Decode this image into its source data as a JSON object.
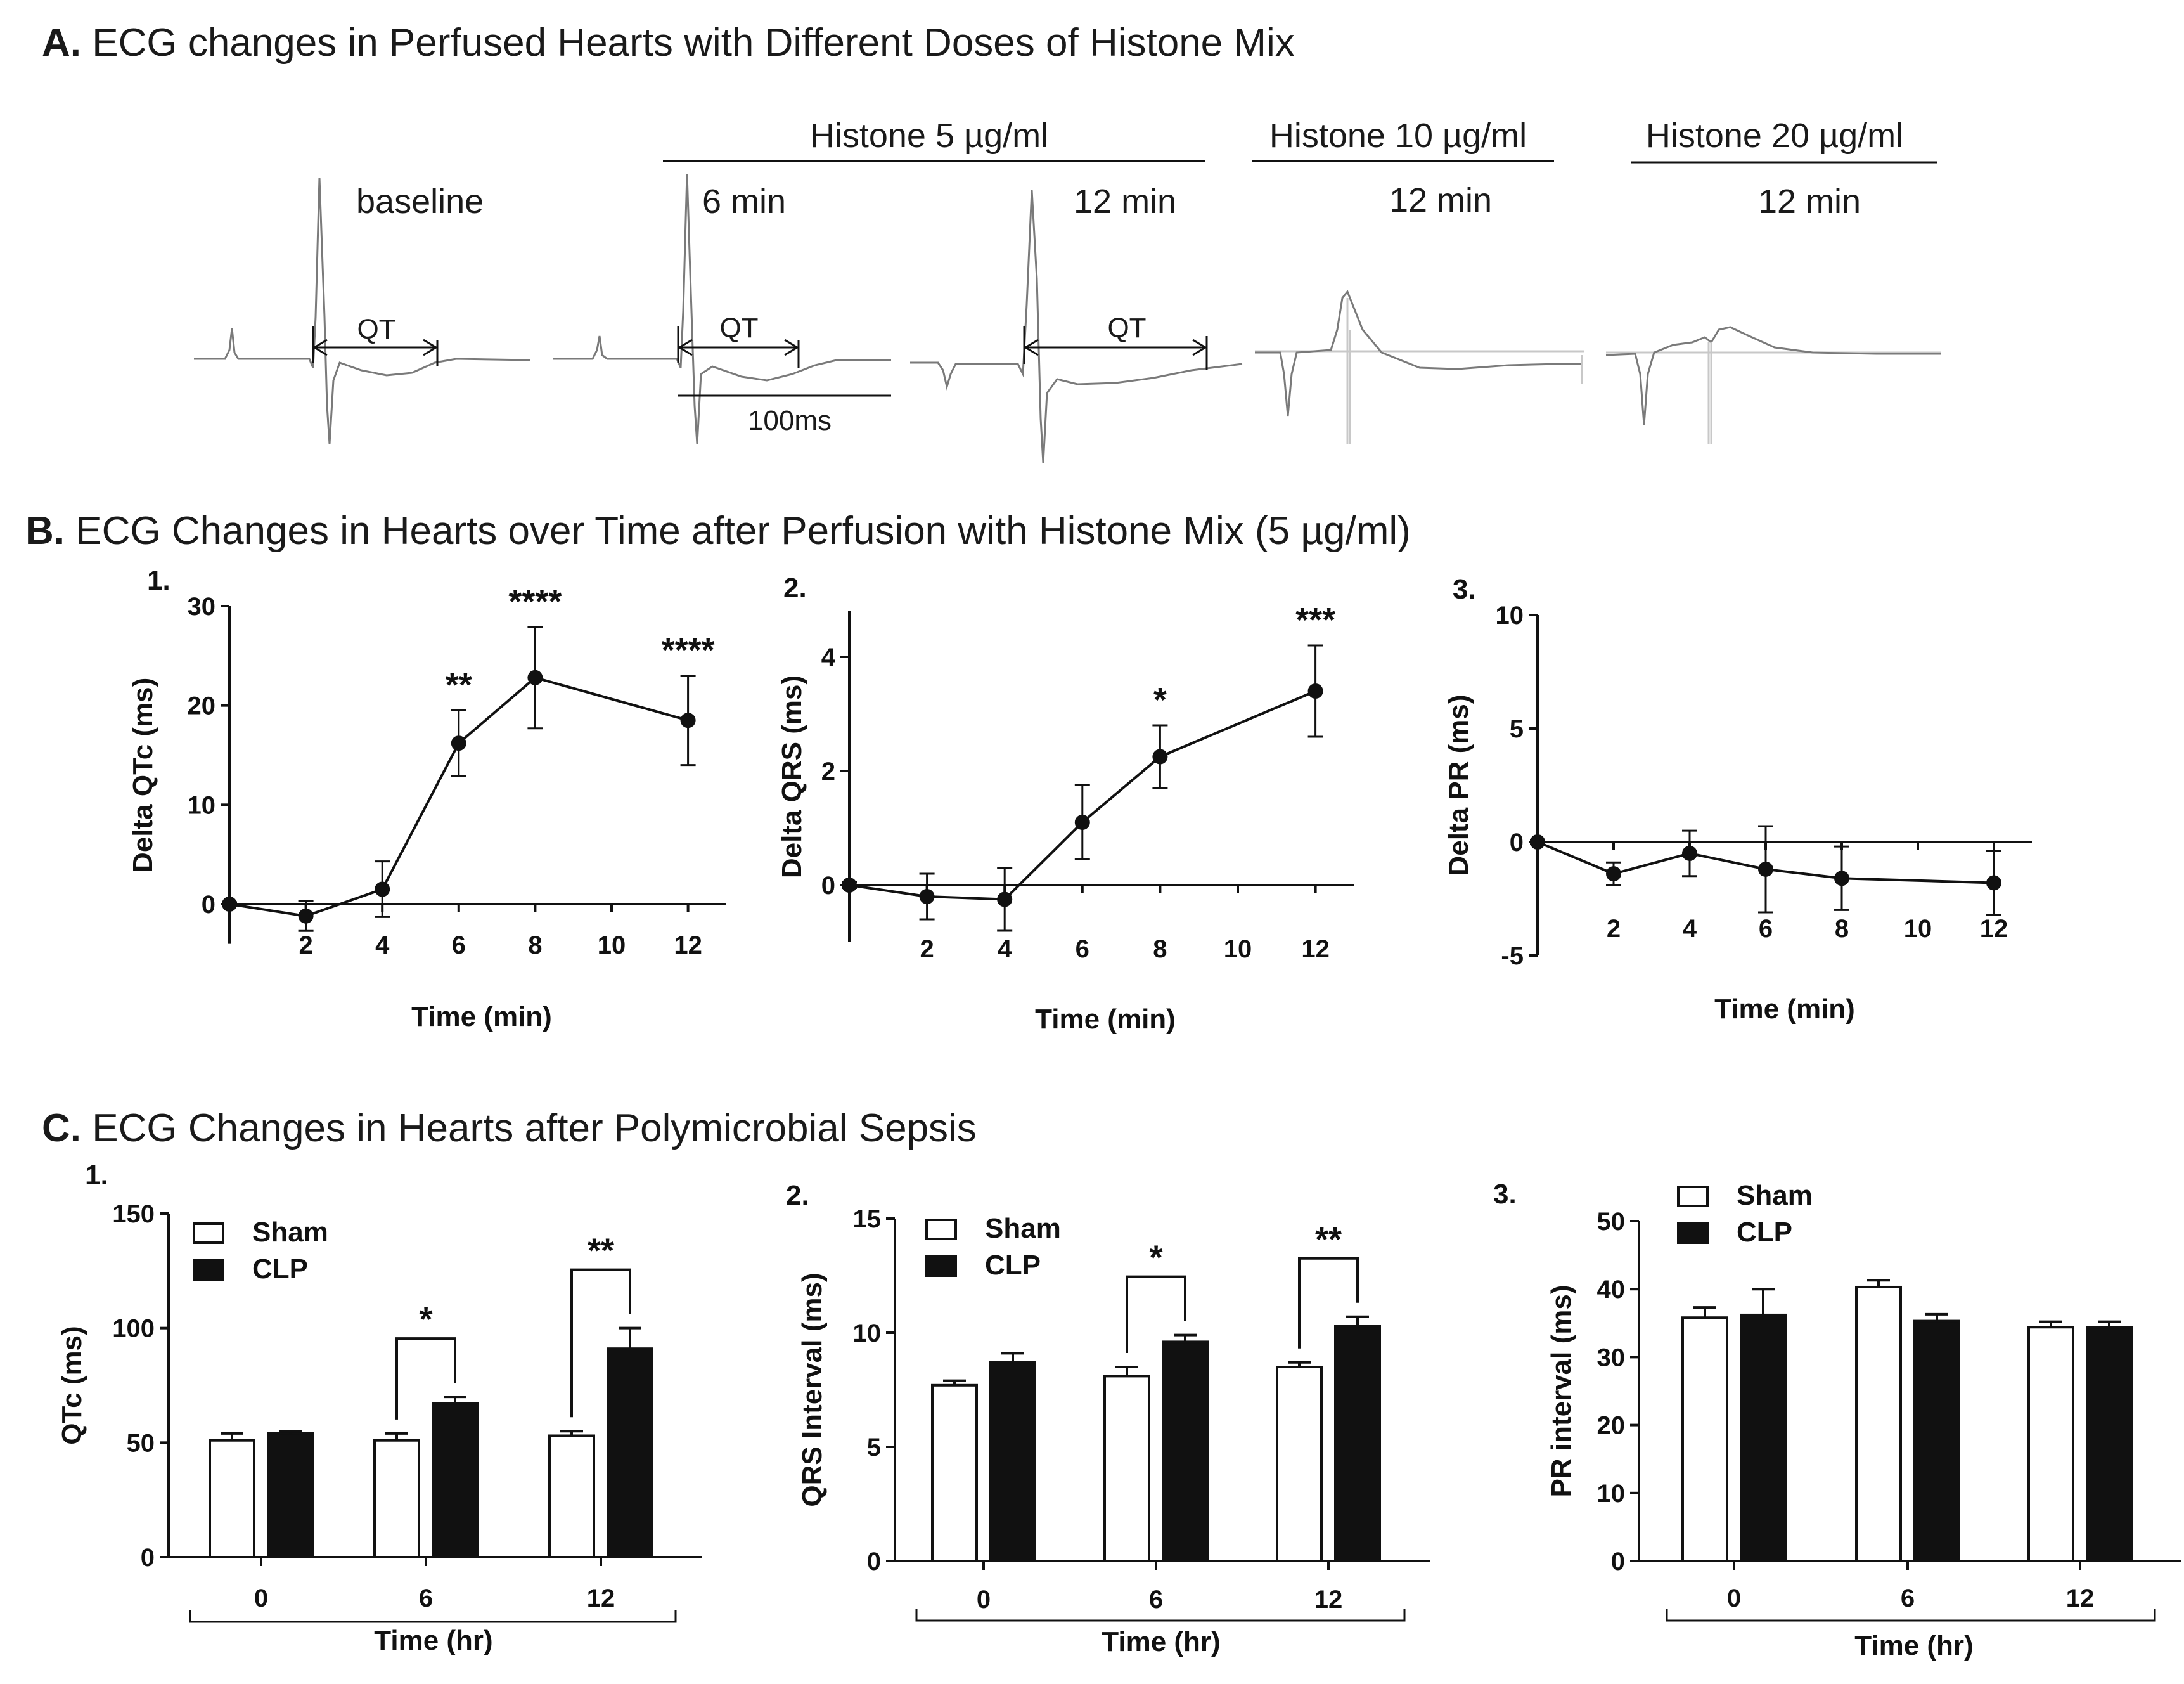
{
  "sections": {
    "A": {
      "letter": "A.",
      "title": "ECG changes in Perfused Hearts with Different Doses of Histone Mix"
    },
    "B": {
      "letter": "B.",
      "title": "ECG Changes in Hearts over Time after Perfusion with Histone Mix (5 µg/ml)"
    },
    "C": {
      "letter": "C.",
      "title": "ECG Changes in Hearts after Polymicrobial Sepsis"
    }
  },
  "ecg": {
    "groups": [
      "Histone 5 µg/ml",
      "Histone 10 µg/ml",
      "Histone 20 µg/ml"
    ],
    "traces": [
      "baseline",
      "6 min",
      "12 min",
      "12 min",
      "12 min"
    ],
    "qt_label": "QT",
    "scale_label": "100ms"
  },
  "colors": {
    "ink": "#111111",
    "trace": "#7a7a7a",
    "baseline_ref": "#c8c8c8"
  },
  "chart_data": [
    {
      "id": "B1",
      "type": "line",
      "panel": "1.",
      "xlabel": "Time (min)",
      "ylabel": "Delta QTc (ms)",
      "xlim": [
        0,
        13
      ],
      "ylim": [
        -4,
        30
      ],
      "xticks": [
        2,
        4,
        6,
        8,
        10,
        12
      ],
      "yticks": [
        0,
        10,
        20,
        30
      ],
      "x": [
        0,
        2,
        4,
        6,
        8,
        12
      ],
      "series": [
        {
          "name": "Delta QTc",
          "values": [
            0,
            -1.2,
            1.5,
            16.2,
            22.8,
            18.5
          ],
          "errors": [
            0.2,
            1.5,
            2.8,
            3.3,
            5.1,
            4.5
          ]
        }
      ],
      "annotations": [
        {
          "x": 6,
          "text": "**"
        },
        {
          "x": 8,
          "text": "****"
        },
        {
          "x": 12,
          "text": "****"
        }
      ]
    },
    {
      "id": "B2",
      "type": "line",
      "panel": "2.",
      "xlabel": "Time (min)",
      "ylabel": "Delta QRS (ms)",
      "xlim": [
        0,
        13
      ],
      "ylim": [
        -1,
        4.8
      ],
      "xticks": [
        2,
        4,
        6,
        8,
        10,
        12
      ],
      "yticks": [
        0,
        2,
        4
      ],
      "x": [
        0,
        2,
        4,
        6,
        8,
        12
      ],
      "series": [
        {
          "name": "Delta QRS",
          "values": [
            0,
            -0.2,
            -0.25,
            1.1,
            2.25,
            3.4
          ],
          "errors": [
            0.05,
            0.4,
            0.55,
            0.65,
            0.55,
            0.8
          ]
        }
      ],
      "annotations": [
        {
          "x": 8,
          "text": "*"
        },
        {
          "x": 12,
          "text": "***"
        }
      ]
    },
    {
      "id": "B3",
      "type": "line",
      "panel": "3.",
      "xlabel": "Time (min)",
      "ylabel": "Delta PR (ms)",
      "xlim": [
        0,
        13
      ],
      "ylim": [
        -5,
        10
      ],
      "xticks": [
        2,
        4,
        6,
        8,
        10,
        12
      ],
      "yticks": [
        -5,
        0,
        5,
        10
      ],
      "x": [
        0,
        2,
        4,
        6,
        8,
        12
      ],
      "series": [
        {
          "name": "Delta PR",
          "values": [
            0,
            -1.4,
            -0.5,
            -1.2,
            -1.6,
            -1.8
          ],
          "errors": [
            0.1,
            0.5,
            1.0,
            1.9,
            1.4,
            1.4
          ]
        }
      ],
      "annotations": []
    },
    {
      "id": "C1",
      "type": "bar",
      "panel": "1.",
      "xlabel": "Time (hr)",
      "ylabel": "QTc (ms)",
      "categories": [
        "0",
        "6",
        "12"
      ],
      "ylim": [
        0,
        150
      ],
      "yticks": [
        0,
        50,
        100,
        150
      ],
      "series": [
        {
          "name": "Sham",
          "values": [
            51,
            51,
            53
          ],
          "errors": [
            3,
            3,
            2
          ]
        },
        {
          "name": "CLP",
          "values": [
            54,
            67,
            91
          ],
          "errors": [
            1,
            3,
            9
          ]
        }
      ],
      "brackets": [
        {
          "category": 1,
          "text": "*"
        },
        {
          "category": 2,
          "text": "**"
        }
      ]
    },
    {
      "id": "C2",
      "type": "bar",
      "panel": "2.",
      "xlabel": "Time (hr)",
      "ylabel": "QRS Interval (ms)",
      "categories": [
        "0",
        "6",
        "12"
      ],
      "ylim": [
        0,
        15
      ],
      "yticks": [
        0,
        5,
        10,
        15
      ],
      "series": [
        {
          "name": "Sham",
          "values": [
            7.7,
            8.1,
            8.5
          ],
          "errors": [
            0.2,
            0.4,
            0.2
          ]
        },
        {
          "name": "CLP",
          "values": [
            8.7,
            9.6,
            10.3
          ],
          "errors": [
            0.4,
            0.3,
            0.4
          ]
        }
      ],
      "brackets": [
        {
          "category": 1,
          "text": "*"
        },
        {
          "category": 2,
          "text": "**"
        }
      ]
    },
    {
      "id": "C3",
      "type": "bar",
      "panel": "3.",
      "xlabel": "Time (hr)",
      "ylabel": "PR interval (ms)",
      "categories": [
        "0",
        "6",
        "12"
      ],
      "ylim": [
        0,
        50
      ],
      "yticks": [
        0,
        10,
        20,
        30,
        40,
        50
      ],
      "series": [
        {
          "name": "Sham",
          "values": [
            35.8,
            40.3,
            34.4
          ],
          "errors": [
            1.5,
            1.0,
            0.8
          ]
        },
        {
          "name": "CLP",
          "values": [
            36.2,
            35.3,
            34.4
          ],
          "errors": [
            3.8,
            1.0,
            0.8
          ]
        }
      ],
      "brackets": []
    }
  ]
}
